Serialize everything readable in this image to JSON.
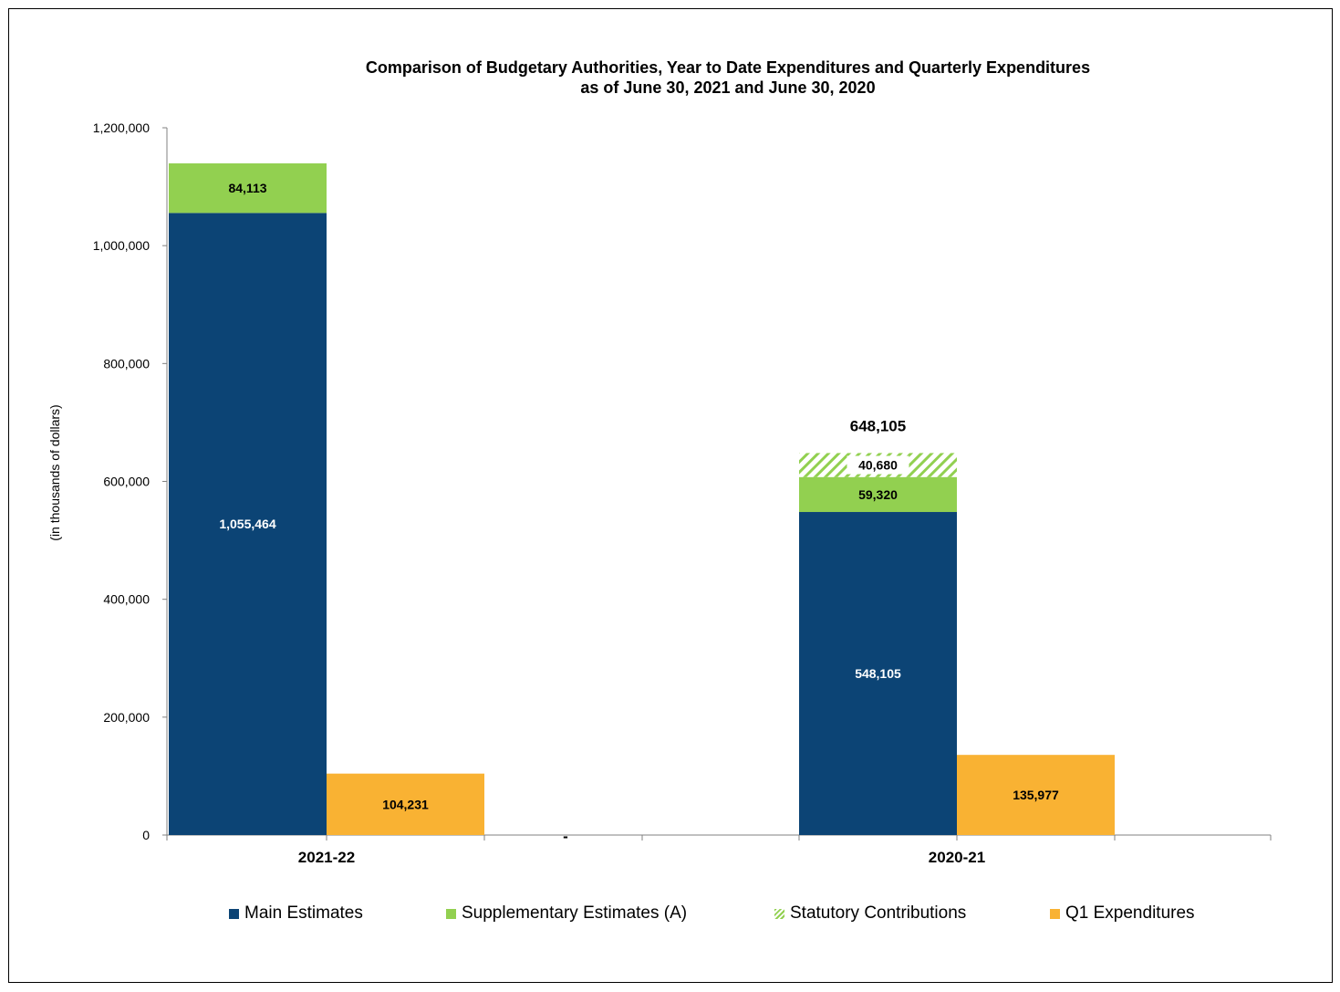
{
  "chart_data": {
    "type": "bar",
    "title": [
      "Comparison of Budgetary Authorities, Year to Date Expenditures and Quarterly Expenditures",
      "as of June 30, 2021 and June 30, 2020"
    ],
    "ylabel": "(in thousands  of dollars)",
    "ylim": [
      0,
      1200000
    ],
    "yticks": [
      0,
      200000,
      400000,
      600000,
      800000,
      1000000,
      1200000
    ],
    "ytick_labels": [
      "0",
      "200,000",
      "400,000",
      "600,000",
      "800,000",
      "1,000,000",
      "1,200,000"
    ],
    "categories": [
      "2021-22",
      "2020-21"
    ],
    "gap_label": "-",
    "stacked_series": [
      {
        "name": "Main Estimates",
        "color": "#0c4475",
        "pattern": "solid",
        "values": [
          1055464,
          548105
        ],
        "labels": [
          "1,055,464",
          "548,105"
        ],
        "label_color": "#ffffff"
      },
      {
        "name": "Supplementary Estimates (A)",
        "color": "#92d050",
        "pattern": "solid",
        "values": [
          84113,
          59320
        ],
        "labels": [
          "84,113",
          "59,320"
        ],
        "label_color": "#000000"
      },
      {
        "name": "Statutory Contributions",
        "color": "#92d050",
        "pattern": "hatch",
        "values": [
          0,
          40680
        ],
        "labels": [
          "",
          "40,680"
        ],
        "label_color": "#000000"
      }
    ],
    "side_series": {
      "name": "Q1 Expenditures",
      "color": "#f9b233",
      "values": [
        104231,
        135977
      ],
      "labels": [
        "104,231",
        "135,977"
      ],
      "label_color": "#000000"
    },
    "stack_totals": [
      "",
      "648,105"
    ],
    "legend": [
      "Main Estimates",
      "Supplementary Estimates (A)",
      "Statutory Contributions",
      "Q1 Expenditures"
    ],
    "legend_position": "bottom",
    "grid": false
  }
}
